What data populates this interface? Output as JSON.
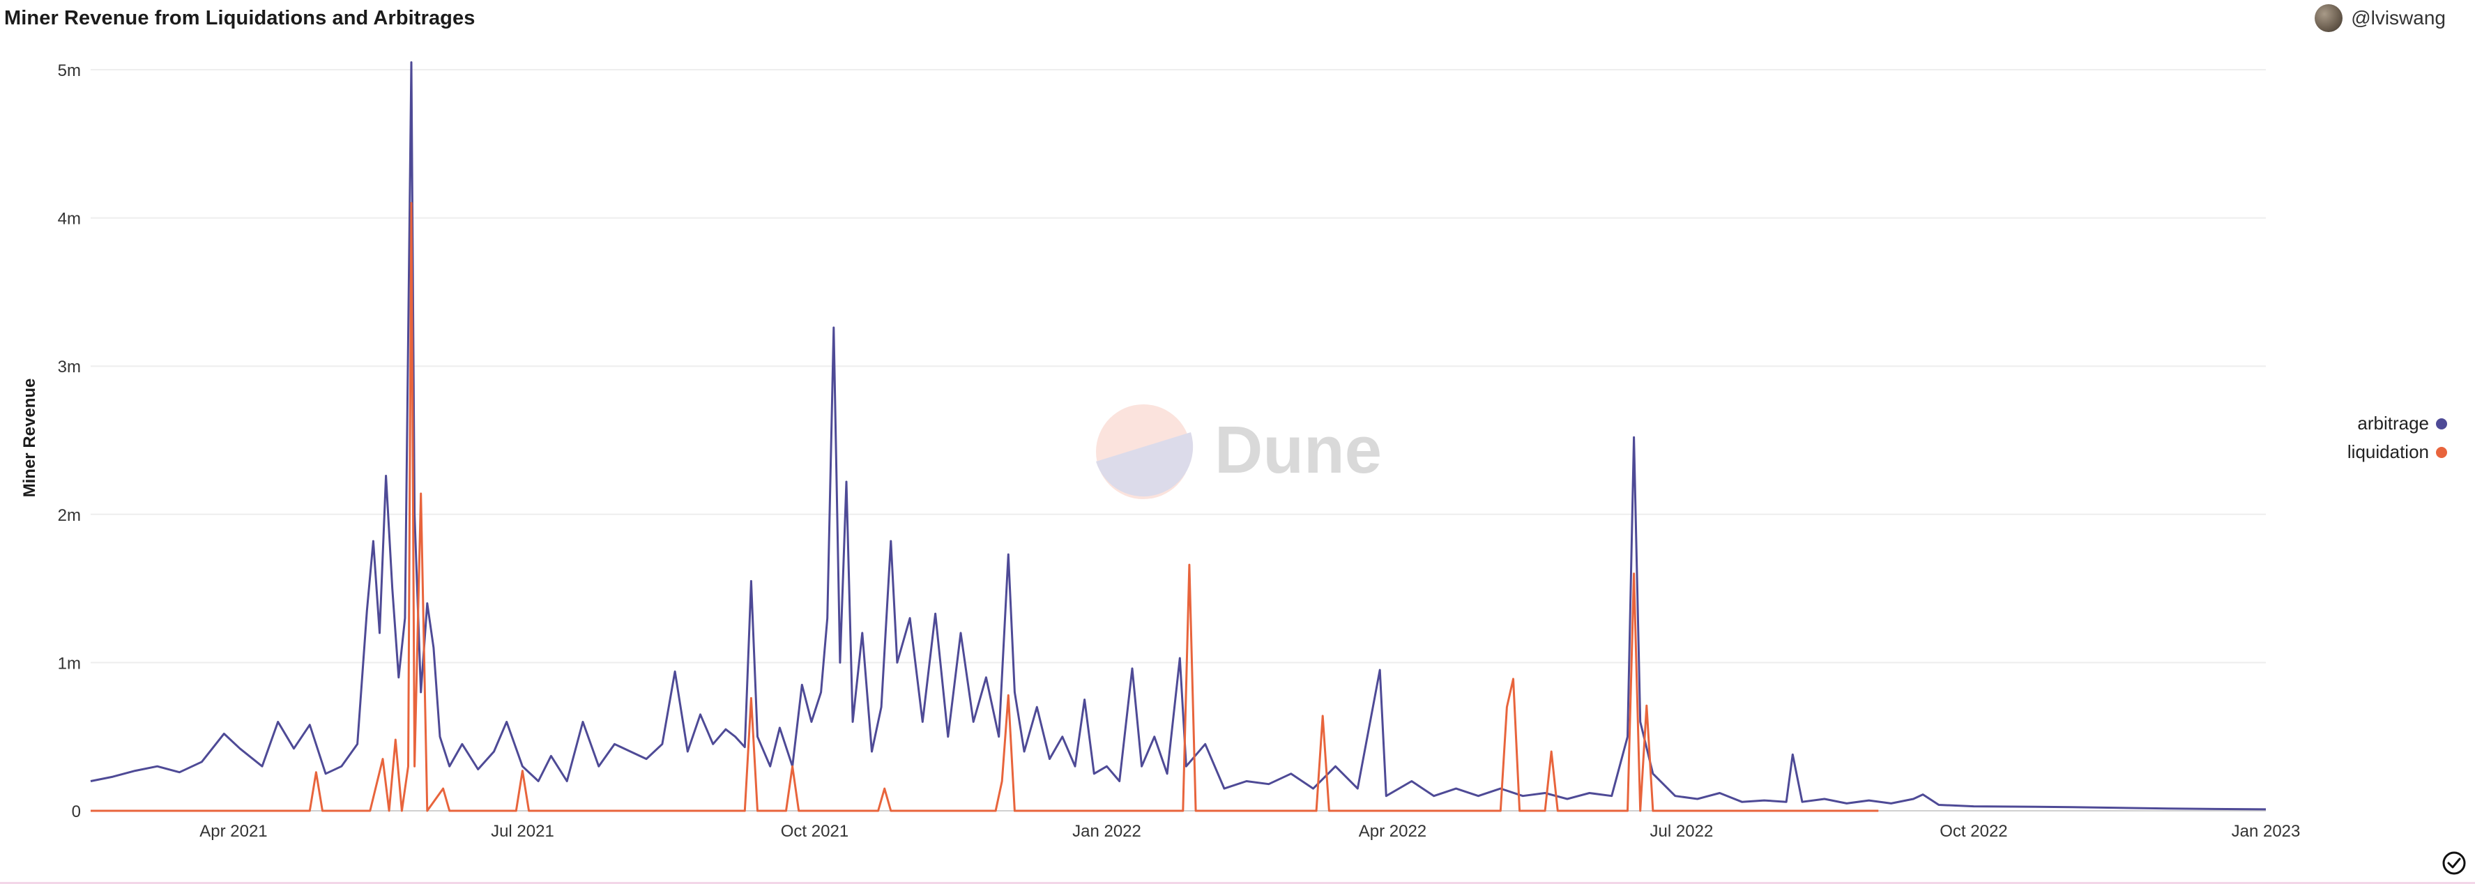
{
  "header": {
    "title": "Miner Revenue from Liquidations and Arbitrages",
    "author": "@lviswang"
  },
  "watermark": {
    "text": "Dune"
  },
  "colors": {
    "arbitrage": "#4e4a96",
    "liquidation": "#e8643c"
  },
  "chart_data": {
    "type": "line",
    "title": "Miner Revenue from Liquidations and Arbitrages",
    "xlabel": "",
    "ylabel": "Miner Revenue",
    "x_range": [
      "2021-02-15",
      "2023-01-01"
    ],
    "ylim": [
      0,
      5000000
    ],
    "y_ticks": [
      0,
      1000000,
      2000000,
      3000000,
      4000000,
      5000000
    ],
    "y_tick_labels": [
      "0",
      "1m",
      "2m",
      "3m",
      "4m",
      "5m"
    ],
    "x_ticks": [
      "2021-04-01",
      "2021-07-01",
      "2021-10-01",
      "2022-01-01",
      "2022-04-01",
      "2022-07-01",
      "2022-10-01",
      "2023-01-01"
    ],
    "x_tick_labels": [
      "Apr 2021",
      "Jul 2021",
      "Oct 2021",
      "Jan 2022",
      "Apr 2022",
      "Jul 2022",
      "Oct 2022",
      "Jan 2023"
    ],
    "grid": true,
    "legend_position": "right",
    "series": [
      {
        "name": "arbitrage",
        "points": [
          [
            "2021-02-15",
            200000
          ],
          [
            "2021-02-22",
            230000
          ],
          [
            "2021-03-01",
            270000
          ],
          [
            "2021-03-08",
            300000
          ],
          [
            "2021-03-15",
            260000
          ],
          [
            "2021-03-22",
            330000
          ],
          [
            "2021-03-29",
            520000
          ],
          [
            "2021-04-03",
            420000
          ],
          [
            "2021-04-10",
            300000
          ],
          [
            "2021-04-15",
            600000
          ],
          [
            "2021-04-20",
            420000
          ],
          [
            "2021-04-25",
            580000
          ],
          [
            "2021-04-30",
            250000
          ],
          [
            "2021-05-05",
            300000
          ],
          [
            "2021-05-10",
            450000
          ],
          [
            "2021-05-13",
            1350000
          ],
          [
            "2021-05-15",
            1820000
          ],
          [
            "2021-05-17",
            1200000
          ],
          [
            "2021-05-19",
            2260000
          ],
          [
            "2021-05-21",
            1500000
          ],
          [
            "2021-05-23",
            900000
          ],
          [
            "2021-05-25",
            1300000
          ],
          [
            "2021-05-27",
            5050000
          ],
          [
            "2021-05-28",
            2000000
          ],
          [
            "2021-05-30",
            800000
          ],
          [
            "2021-06-01",
            1400000
          ],
          [
            "2021-06-03",
            1100000
          ],
          [
            "2021-06-05",
            500000
          ],
          [
            "2021-06-08",
            300000
          ],
          [
            "2021-06-12",
            450000
          ],
          [
            "2021-06-17",
            280000
          ],
          [
            "2021-06-22",
            400000
          ],
          [
            "2021-06-26",
            600000
          ],
          [
            "2021-07-01",
            300000
          ],
          [
            "2021-07-06",
            200000
          ],
          [
            "2021-07-10",
            370000
          ],
          [
            "2021-07-15",
            200000
          ],
          [
            "2021-07-20",
            600000
          ],
          [
            "2021-07-25",
            300000
          ],
          [
            "2021-07-30",
            450000
          ],
          [
            "2021-08-04",
            400000
          ],
          [
            "2021-08-09",
            350000
          ],
          [
            "2021-08-14",
            450000
          ],
          [
            "2021-08-18",
            940000
          ],
          [
            "2021-08-22",
            400000
          ],
          [
            "2021-08-26",
            650000
          ],
          [
            "2021-08-30",
            450000
          ],
          [
            "2021-09-03",
            550000
          ],
          [
            "2021-09-06",
            500000
          ],
          [
            "2021-09-09",
            430000
          ],
          [
            "2021-09-11",
            1550000
          ],
          [
            "2021-09-13",
            500000
          ],
          [
            "2021-09-17",
            300000
          ],
          [
            "2021-09-20",
            560000
          ],
          [
            "2021-09-24",
            300000
          ],
          [
            "2021-09-27",
            850000
          ],
          [
            "2021-09-30",
            600000
          ],
          [
            "2021-10-03",
            800000
          ],
          [
            "2021-10-05",
            1300000
          ],
          [
            "2021-10-07",
            3260000
          ],
          [
            "2021-10-09",
            1000000
          ],
          [
            "2021-10-11",
            2220000
          ],
          [
            "2021-10-13",
            600000
          ],
          [
            "2021-10-16",
            1200000
          ],
          [
            "2021-10-19",
            400000
          ],
          [
            "2021-10-22",
            700000
          ],
          [
            "2021-10-25",
            1820000
          ],
          [
            "2021-10-27",
            1000000
          ],
          [
            "2021-10-31",
            1300000
          ],
          [
            "2021-11-04",
            600000
          ],
          [
            "2021-11-08",
            1330000
          ],
          [
            "2021-11-12",
            500000
          ],
          [
            "2021-11-16",
            1200000
          ],
          [
            "2021-11-20",
            600000
          ],
          [
            "2021-11-24",
            900000
          ],
          [
            "2021-11-28",
            500000
          ],
          [
            "2021-12-01",
            1730000
          ],
          [
            "2021-12-03",
            800000
          ],
          [
            "2021-12-06",
            400000
          ],
          [
            "2021-12-10",
            700000
          ],
          [
            "2021-12-14",
            350000
          ],
          [
            "2021-12-18",
            500000
          ],
          [
            "2021-12-22",
            300000
          ],
          [
            "2021-12-25",
            750000
          ],
          [
            "2021-12-28",
            250000
          ],
          [
            "2022-01-01",
            300000
          ],
          [
            "2022-01-05",
            200000
          ],
          [
            "2022-01-09",
            960000
          ],
          [
            "2022-01-12",
            300000
          ],
          [
            "2022-01-16",
            500000
          ],
          [
            "2022-01-20",
            250000
          ],
          [
            "2022-01-24",
            1030000
          ],
          [
            "2022-01-26",
            300000
          ],
          [
            "2022-02-01",
            450000
          ],
          [
            "2022-02-07",
            150000
          ],
          [
            "2022-02-14",
            200000
          ],
          [
            "2022-02-21",
            180000
          ],
          [
            "2022-02-28",
            250000
          ],
          [
            "2022-03-07",
            150000
          ],
          [
            "2022-03-14",
            300000
          ],
          [
            "2022-03-21",
            150000
          ],
          [
            "2022-03-28",
            950000
          ],
          [
            "2022-03-30",
            100000
          ],
          [
            "2022-04-07",
            200000
          ],
          [
            "2022-04-14",
            100000
          ],
          [
            "2022-04-21",
            150000
          ],
          [
            "2022-04-28",
            100000
          ],
          [
            "2022-05-05",
            150000
          ],
          [
            "2022-05-12",
            100000
          ],
          [
            "2022-05-19",
            120000
          ],
          [
            "2022-05-26",
            80000
          ],
          [
            "2022-06-02",
            120000
          ],
          [
            "2022-06-09",
            100000
          ],
          [
            "2022-06-14",
            500000
          ],
          [
            "2022-06-16",
            2520000
          ],
          [
            "2022-06-18",
            600000
          ],
          [
            "2022-06-22",
            250000
          ],
          [
            "2022-06-29",
            100000
          ],
          [
            "2022-07-06",
            80000
          ],
          [
            "2022-07-13",
            120000
          ],
          [
            "2022-07-20",
            60000
          ],
          [
            "2022-07-27",
            70000
          ],
          [
            "2022-08-03",
            60000
          ],
          [
            "2022-08-05",
            380000
          ],
          [
            "2022-08-08",
            60000
          ],
          [
            "2022-08-15",
            80000
          ],
          [
            "2022-08-22",
            50000
          ],
          [
            "2022-08-29",
            70000
          ],
          [
            "2022-09-05",
            50000
          ],
          [
            "2022-09-12",
            80000
          ],
          [
            "2022-09-15",
            110000
          ],
          [
            "2022-09-20",
            40000
          ],
          [
            "2022-10-01",
            30000
          ],
          [
            "2022-11-01",
            25000
          ],
          [
            "2022-12-01",
            15000
          ],
          [
            "2023-01-01",
            10000
          ]
        ]
      },
      {
        "name": "liquidation",
        "points": [
          [
            "2021-02-15",
            0
          ],
          [
            "2021-04-25",
            0
          ],
          [
            "2021-04-27",
            260000
          ],
          [
            "2021-04-29",
            0
          ],
          [
            "2021-05-14",
            0
          ],
          [
            "2021-05-18",
            350000
          ],
          [
            "2021-05-20",
            0
          ],
          [
            "2021-05-22",
            480000
          ],
          [
            "2021-05-24",
            0
          ],
          [
            "2021-05-26",
            300000
          ],
          [
            "2021-05-27",
            4100000
          ],
          [
            "2021-05-28",
            300000
          ],
          [
            "2021-05-30",
            2140000
          ],
          [
            "2021-06-01",
            0
          ],
          [
            "2021-06-06",
            150000
          ],
          [
            "2021-06-08",
            0
          ],
          [
            "2021-06-29",
            0
          ],
          [
            "2021-07-01",
            270000
          ],
          [
            "2021-07-03",
            0
          ],
          [
            "2021-09-09",
            0
          ],
          [
            "2021-09-11",
            760000
          ],
          [
            "2021-09-13",
            0
          ],
          [
            "2021-09-22",
            0
          ],
          [
            "2021-09-24",
            300000
          ],
          [
            "2021-09-26",
            0
          ],
          [
            "2021-10-21",
            0
          ],
          [
            "2021-10-23",
            150000
          ],
          [
            "2021-10-25",
            0
          ],
          [
            "2021-11-27",
            0
          ],
          [
            "2021-11-29",
            200000
          ],
          [
            "2021-12-01",
            780000
          ],
          [
            "2021-12-03",
            0
          ],
          [
            "2022-01-25",
            0
          ],
          [
            "2022-01-27",
            1660000
          ],
          [
            "2022-01-29",
            0
          ],
          [
            "2022-03-08",
            0
          ],
          [
            "2022-03-10",
            640000
          ],
          [
            "2022-03-12",
            0
          ],
          [
            "2022-05-05",
            0
          ],
          [
            "2022-05-07",
            700000
          ],
          [
            "2022-05-09",
            890000
          ],
          [
            "2022-05-11",
            0
          ],
          [
            "2022-05-19",
            0
          ],
          [
            "2022-05-21",
            400000
          ],
          [
            "2022-05-23",
            0
          ],
          [
            "2022-06-14",
            0
          ],
          [
            "2022-06-16",
            1600000
          ],
          [
            "2022-06-18",
            0
          ],
          [
            "2022-06-20",
            710000
          ],
          [
            "2022-06-22",
            0
          ],
          [
            "2022-09-01",
            0
          ]
        ]
      }
    ]
  }
}
